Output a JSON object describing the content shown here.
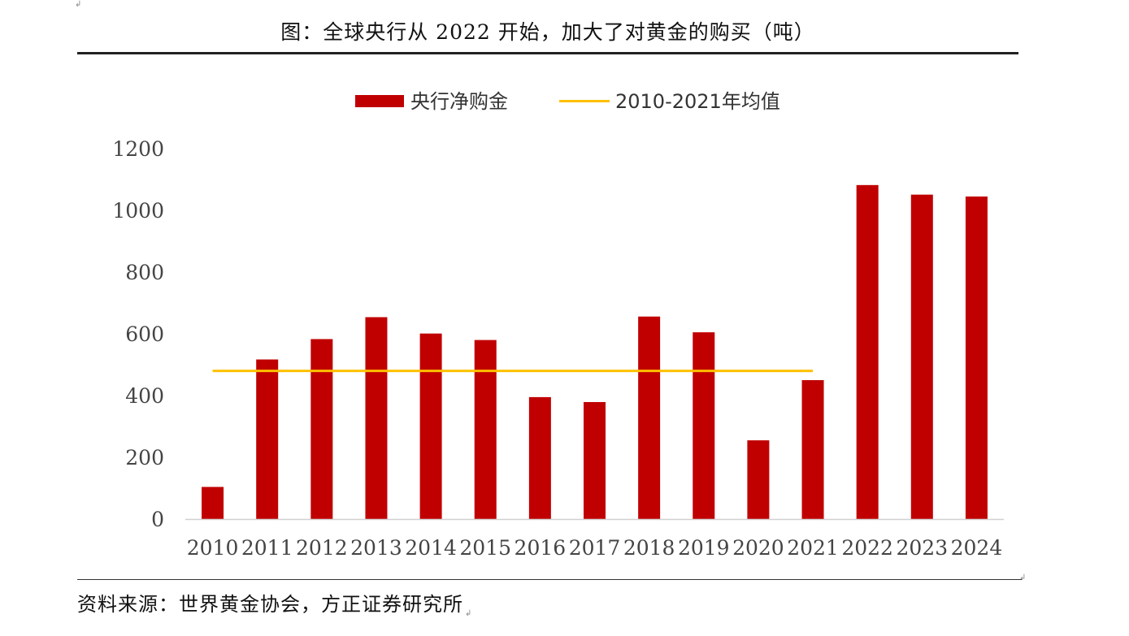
{
  "title": "图：全球央行从 2022 开始，加大了对黄金的购买（吨）",
  "source": "资料来源：世界黄金协会，方正证券研究所",
  "chart_data": {
    "type": "bar",
    "categories": [
      "2010",
      "2011",
      "2012",
      "2013",
      "2014",
      "2015",
      "2016",
      "2017",
      "2018",
      "2019",
      "2020",
      "2021",
      "2022",
      "2023",
      "2024"
    ],
    "series": [
      {
        "name": "央行净购金",
        "type": "bar",
        "color": "#C00000",
        "values": [
          104,
          517,
          583,
          654,
          601,
          580,
          395,
          379,
          656,
          605,
          255,
          450,
          1082,
          1051,
          1045
        ]
      },
      {
        "name": "2010-2021年均值",
        "type": "line",
        "color": "#FFC000",
        "x_range": [
          "2010",
          "2021"
        ],
        "value": 480
      }
    ],
    "ylim": [
      0,
      1200
    ],
    "yticks": [
      0,
      200,
      400,
      600,
      800,
      1000,
      1200
    ],
    "legend": "top-center",
    "grid": false
  }
}
